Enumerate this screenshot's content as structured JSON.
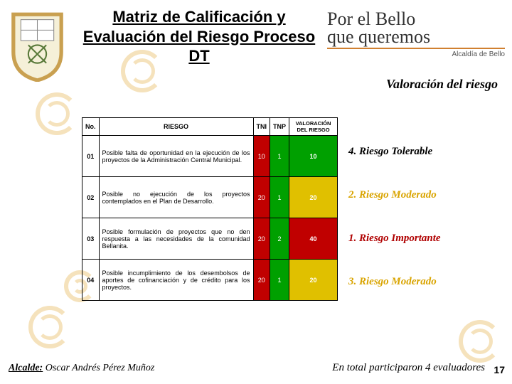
{
  "title": "Matriz de Calificación y Evaluación del Riesgo Proceso DT",
  "brand": {
    "line1": "Por el Bello",
    "line2": "que queremos",
    "sub": "Alcaldía de Bello"
  },
  "valoracion_title": "Valoración del riesgo",
  "table": {
    "headers": {
      "no": "No.",
      "riesgo": "RIESGO",
      "tni": "TNI",
      "tnp": "TNP",
      "val": "VALORACIÓN DEL RIESGO"
    },
    "rows": [
      {
        "no": "01",
        "riesgo": "Posible falta de oportunidad en la ejecución de los proyectos de la Administración Central Municipal.",
        "tni": "10",
        "tnp": "1",
        "val": "10",
        "tni_bg": "#c00000",
        "tnp_bg": "#00a000",
        "val_bg": "#00a000"
      },
      {
        "no": "02",
        "riesgo": "Posible no ejecución de los proyectos contemplados en el Plan de Desarrollo.",
        "tni": "20",
        "tnp": "1",
        "val": "20",
        "tni_bg": "#c00000",
        "tnp_bg": "#00a000",
        "val_bg": "#e0c000"
      },
      {
        "no": "03",
        "riesgo": "Posible formulación de proyectos que no den respuesta a las necesidades de la comunidad Bellanita.",
        "tni": "20",
        "tnp": "2",
        "val": "40",
        "tni_bg": "#c00000",
        "tnp_bg": "#00a000",
        "val_bg": "#c00000"
      },
      {
        "no": "04",
        "riesgo": "Posible incumplimiento de los desembolsos de aportes de cofinanciación y de crédito para los proyectos.",
        "tni": "20",
        "tnp": "1",
        "val": "20",
        "tni_bg": "#c00000",
        "tnp_bg": "#00a000",
        "val_bg": "#e0c000"
      }
    ]
  },
  "labels": [
    {
      "text": "4. Riesgo Tolerable",
      "cls": "lbl1"
    },
    {
      "text": "2. Riesgo Moderado",
      "cls": "lbl2"
    },
    {
      "text": "1. Riesgo Importante",
      "cls": "lbl3"
    },
    {
      "text": "3. Riesgo Moderado",
      "cls": "lbl4"
    }
  ],
  "footer": {
    "left_bold": "Alcalde:",
    "left_name": "Oscar Andrés Pérez Muñoz",
    "right": "En total participaron 4 evaluadores",
    "page": "17"
  },
  "shield": {
    "border": "#c9a050",
    "field": "#f5f0d8"
  }
}
